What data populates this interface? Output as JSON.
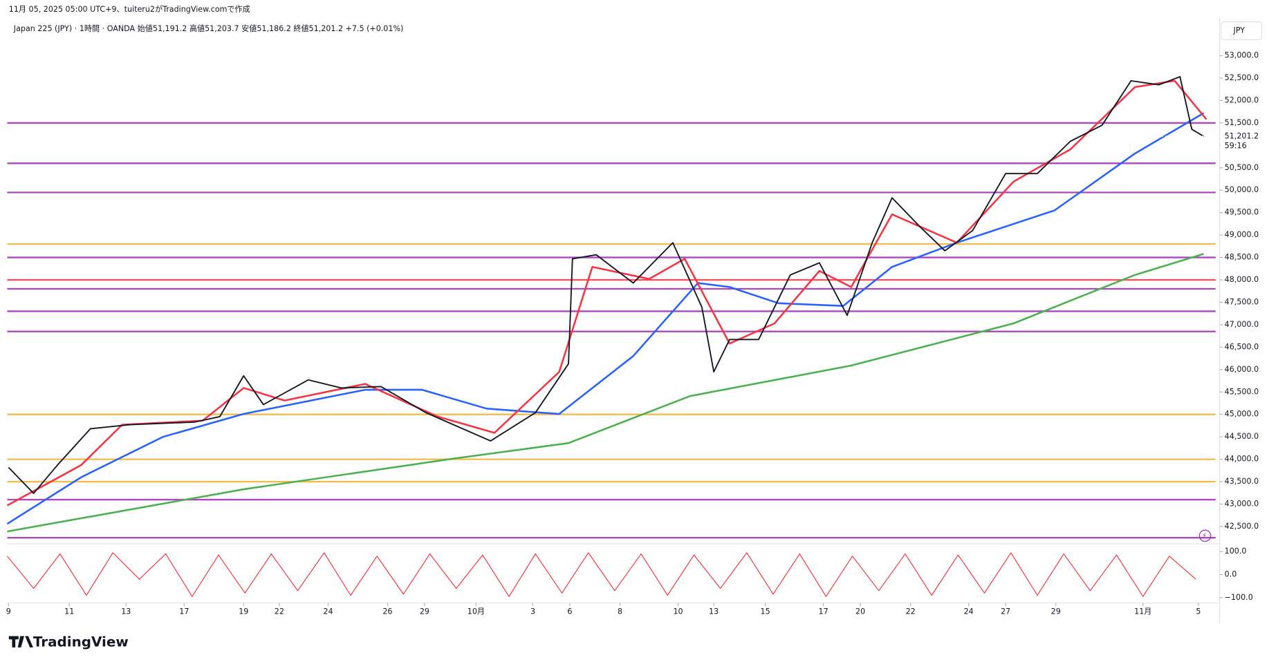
{
  "header": "11月 05, 2025 05:00 UTC+9、tuiteru2がTradingView.comで作成",
  "chart_data": {
    "type": "line",
    "title": "Japan 225 (JPY) · 1時間 · OANDA  始値51,191.2  高値51,203.7  安値51,186.2  終値51,201.2  +7.5 (+0.01%)",
    "currency": "JPY",
    "last_price": {
      "value": 51201.2,
      "label": "51,201.2"
    },
    "countdown": "59:16",
    "xlim": [
      0,
      915
    ],
    "xticks": [
      {
        "value": 1,
        "label": "9"
      },
      {
        "value": 47,
        "label": "11"
      },
      {
        "value": 90,
        "label": "13"
      },
      {
        "value": 134,
        "label": "17"
      },
      {
        "value": 179,
        "label": "19"
      },
      {
        "value": 206,
        "label": "22"
      },
      {
        "value": 243,
        "label": "24"
      },
      {
        "value": 288,
        "label": "26"
      },
      {
        "value": 316,
        "label": "29"
      },
      {
        "value": 355,
        "label": "10月"
      },
      {
        "value": 398,
        "label": "3"
      },
      {
        "value": 426,
        "label": "6"
      },
      {
        "value": 464,
        "label": "8"
      },
      {
        "value": 508,
        "label": "10"
      },
      {
        "value": 535,
        "label": "13"
      },
      {
        "value": 574,
        "label": "15"
      },
      {
        "value": 618,
        "label": "17"
      },
      {
        "value": 646,
        "label": "20"
      },
      {
        "value": 684,
        "label": "22"
      },
      {
        "value": 728,
        "label": "24"
      },
      {
        "value": 756,
        "label": "27"
      },
      {
        "value": 794,
        "label": "29"
      },
      {
        "value": 860,
        "label": "11月"
      },
      {
        "value": 902,
        "label": "5"
      }
    ],
    "ylim": [
      42150,
      53700
    ],
    "yticks": [
      {
        "value": 42500,
        "label": "42,500.0"
      },
      {
        "value": 43000,
        "label": "43,000.0"
      },
      {
        "value": 43500,
        "label": "43,500.0"
      },
      {
        "value": 44000,
        "label": "44,000.0"
      },
      {
        "value": 44500,
        "label": "44,500.0"
      },
      {
        "value": 45000,
        "label": "45,000.0"
      },
      {
        "value": 45500,
        "label": "45,500.0"
      },
      {
        "value": 46000,
        "label": "46,000.0"
      },
      {
        "value": 46500,
        "label": "46,500.0"
      },
      {
        "value": 47000,
        "label": "47,000.0"
      },
      {
        "value": 47500,
        "label": "47,500.0"
      },
      {
        "value": 48000,
        "label": "48,000.0"
      },
      {
        "value": 48500,
        "label": "48,500.0"
      },
      {
        "value": 49000,
        "label": "49,000.0"
      },
      {
        "value": 49500,
        "label": "49,500.0"
      },
      {
        "value": 50000,
        "label": "50,000.0"
      },
      {
        "value": 50500,
        "label": "50,500.0"
      },
      {
        "value": 51000,
        "label": "51,000.0"
      },
      {
        "value": 51500,
        "label": "51,500.0"
      },
      {
        "value": 52000,
        "label": "52,000.0"
      },
      {
        "value": 52500,
        "label": "52,500.0"
      },
      {
        "value": 53000,
        "label": "53,000.0"
      }
    ],
    "levels": [
      {
        "value": 51500,
        "color": "#9c27b0"
      },
      {
        "value": 50600,
        "color": "#9c27b0"
      },
      {
        "value": 49950,
        "color": "#9c27b0"
      },
      {
        "value": 48800,
        "color": "#f0b030"
      },
      {
        "value": 48500,
        "color": "#9c27b0"
      },
      {
        "value": 48000,
        "color": "#f23645"
      },
      {
        "value": 47800,
        "color": "#9c27b0"
      },
      {
        "value": 47300,
        "color": "#9c27b0"
      },
      {
        "value": 46850,
        "color": "#9c27b0"
      },
      {
        "value": 45000,
        "color": "#f0b030"
      },
      {
        "value": 44000,
        "color": "#f0b030"
      },
      {
        "value": 43500,
        "color": "#f0b030"
      },
      {
        "value": 43100,
        "color": "#9c27b0"
      },
      {
        "value": 42250,
        "color": "#9c27b0"
      }
    ],
    "series": [
      {
        "color": "#4caf50",
        "x": [
          0,
          179,
          339,
          425,
          517,
          639,
          762,
          854,
          906
        ],
        "values": [
          42390,
          43330,
          44020,
          44360,
          45410,
          46090,
          47030,
          48110,
          48580
        ]
      },
      {
        "color": "#2962ff",
        "x": [
          0,
          56,
          118,
          179,
          271,
          314,
          363,
          418,
          474,
          523,
          547,
          584,
          633,
          670,
          719,
          793,
          854,
          906
        ],
        "values": [
          42560,
          43600,
          44500,
          45010,
          45550,
          45550,
          45130,
          45010,
          46300,
          47930,
          47840,
          47480,
          47420,
          48290,
          48830,
          49550,
          50820,
          51720
        ]
      },
      {
        "color": "#f23645",
        "x": [
          0,
          56,
          87,
          148,
          179,
          210,
          271,
          326,
          369,
          418,
          443,
          486,
          513,
          547,
          581,
          615,
          639,
          670,
          719,
          762,
          805,
          854,
          884,
          908
        ],
        "values": [
          42970,
          43870,
          44770,
          44860,
          45590,
          45310,
          45680,
          44950,
          44590,
          45950,
          48290,
          48020,
          48470,
          46580,
          47030,
          48200,
          47840,
          49460,
          48830,
          50190,
          50910,
          52300,
          52440,
          51580
        ]
      },
      {
        "color": "#131722",
        "x": [
          1,
          20,
          38,
          63,
          93,
          142,
          161,
          179,
          194,
          228,
          253,
          283,
          317,
          366,
          400,
          425,
          428,
          446,
          474,
          504,
          526,
          535,
          547,
          569,
          593,
          615,
          636,
          655,
          670,
          691,
          710,
          731,
          756,
          780,
          805,
          829,
          851,
          872,
          888,
          897,
          906
        ],
        "values": [
          43820,
          43240,
          43870,
          44680,
          44770,
          44830,
          44950,
          45860,
          45220,
          45770,
          45590,
          45620,
          45040,
          44410,
          45040,
          46130,
          48470,
          48560,
          47930,
          48830,
          47390,
          45950,
          46670,
          46670,
          48110,
          48380,
          47210,
          48830,
          49830,
          49190,
          48650,
          49100,
          50370,
          50370,
          51090,
          51450,
          52440,
          52350,
          52530,
          51360,
          51200
        ]
      }
    ],
    "oscillator": {
      "color": "#f23645",
      "ylim": [
        -123,
        123
      ],
      "yticks": [
        {
          "value": 100,
          "label": "100.0"
        },
        {
          "value": 0,
          "label": "0.0"
        },
        {
          "value": -100,
          "label": "−100.0"
        }
      ],
      "x": [
        0,
        20,
        40,
        60,
        80,
        100,
        120,
        140,
        160,
        180,
        200,
        220,
        240,
        260,
        280,
        300,
        320,
        340,
        360,
        380,
        400,
        420,
        440,
        460,
        480,
        500,
        520,
        540,
        560,
        580,
        600,
        620,
        640,
        660,
        680,
        700,
        720,
        740,
        760,
        780,
        800,
        820,
        840,
        860,
        880,
        900
      ],
      "values": [
        80,
        -60,
        90,
        -90,
        95,
        -20,
        90,
        -95,
        85,
        -80,
        90,
        -70,
        95,
        -90,
        80,
        -85,
        90,
        -60,
        85,
        -95,
        90,
        -80,
        95,
        -70,
        90,
        -90,
        85,
        -60,
        95,
        -85,
        90,
        -95,
        80,
        -70,
        90,
        -90,
        85,
        -80,
        95,
        -90,
        90,
        -70,
        85,
        -95,
        80,
        -20
      ]
    },
    "logo": "TradingView"
  }
}
